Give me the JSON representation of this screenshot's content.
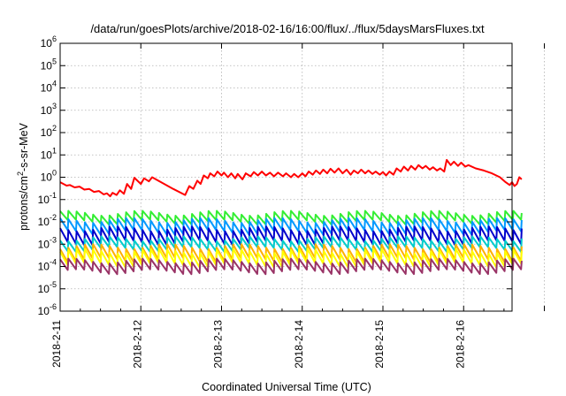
{
  "chart_data": {
    "type": "line",
    "title": "/data/run/goesPlots/archive/2018-02-16/16:00/flux/../flux/5daysMarsFluxes.txt",
    "xlabel": "Coordinated Universal Time (UTC)",
    "ylabel_parts": {
      "pre": "protons/cm",
      "sup": "2",
      "post": "-s-sr-MeV"
    },
    "y_scale": "log",
    "ylim": [
      1e-06,
      1000000.0
    ],
    "y_ticks": [
      {
        "base": "10",
        "exp": "-6"
      },
      {
        "base": "10",
        "exp": "-5"
      },
      {
        "base": "10",
        "exp": "-4"
      },
      {
        "base": "10",
        "exp": "-3"
      },
      {
        "base": "10",
        "exp": "-2"
      },
      {
        "base": "10",
        "exp": "-1"
      },
      {
        "base": "10",
        "exp": "0"
      },
      {
        "base": "10",
        "exp": "1"
      },
      {
        "base": "10",
        "exp": "2"
      },
      {
        "base": "10",
        "exp": "3"
      },
      {
        "base": "10",
        "exp": "4"
      },
      {
        "base": "10",
        "exp": "5"
      },
      {
        "base": "10",
        "exp": "6"
      }
    ],
    "x_ticks": [
      "2018-2-11",
      "2018-2-12",
      "2018-2-13",
      "2018-2-14",
      "2018-2-15",
      "2018-2-16"
    ],
    "x_range_days": [
      0,
      5.72
    ],
    "grid": true,
    "legend": "none",
    "series": [
      {
        "color": "#ff0000",
        "points": [
          [
            0.0,
            0.6
          ],
          [
            0.08,
            0.42
          ],
          [
            0.12,
            0.45
          ],
          [
            0.18,
            0.35
          ],
          [
            0.24,
            0.38
          ],
          [
            0.3,
            0.28
          ],
          [
            0.36,
            0.3
          ],
          [
            0.42,
            0.22
          ],
          [
            0.48,
            0.24
          ],
          [
            0.54,
            0.17
          ],
          [
            0.58,
            0.19
          ],
          [
            0.62,
            0.14
          ],
          [
            0.65,
            0.2
          ],
          [
            0.7,
            0.16
          ],
          [
            0.74,
            0.26
          ],
          [
            0.79,
            0.18
          ],
          [
            0.83,
            0.5
          ],
          [
            0.88,
            0.3
          ],
          [
            0.92,
            0.95
          ],
          [
            1.0,
            0.5
          ],
          [
            1.04,
            0.9
          ],
          [
            1.1,
            0.65
          ],
          [
            1.14,
            1.0
          ],
          [
            1.25,
            0.6
          ],
          [
            1.4,
            0.3
          ],
          [
            1.55,
            0.16
          ],
          [
            1.6,
            0.4
          ],
          [
            1.65,
            0.3
          ],
          [
            1.7,
            0.7
          ],
          [
            1.74,
            0.5
          ],
          [
            1.78,
            1.2
          ],
          [
            1.83,
            0.9
          ],
          [
            1.86,
            1.5
          ],
          [
            1.91,
            1.1
          ],
          [
            1.95,
            1.8
          ],
          [
            2.0,
            1.2
          ],
          [
            2.03,
            1.6
          ],
          [
            2.08,
            1.0
          ],
          [
            2.12,
            1.5
          ],
          [
            2.17,
            0.9
          ],
          [
            2.2,
            1.4
          ],
          [
            2.26,
            0.8
          ],
          [
            2.3,
            1.5
          ],
          [
            2.36,
            1.1
          ],
          [
            2.4,
            1.7
          ],
          [
            2.45,
            1.2
          ],
          [
            2.5,
            1.8
          ],
          [
            2.55,
            1.2
          ],
          [
            2.6,
            1.6
          ],
          [
            2.65,
            1.1
          ],
          [
            2.7,
            1.6
          ],
          [
            2.76,
            1.1
          ],
          [
            2.8,
            1.5
          ],
          [
            2.86,
            1.0
          ],
          [
            2.9,
            1.4
          ],
          [
            2.95,
            1.0
          ],
          [
            3.0,
            1.5
          ],
          [
            3.04,
            1.1
          ],
          [
            3.08,
            1.8
          ],
          [
            3.13,
            1.3
          ],
          [
            3.17,
            2.0
          ],
          [
            3.22,
            1.4
          ],
          [
            3.26,
            2.2
          ],
          [
            3.31,
            1.5
          ],
          [
            3.35,
            2.4
          ],
          [
            3.4,
            1.6
          ],
          [
            3.45,
            2.5
          ],
          [
            3.5,
            1.5
          ],
          [
            3.55,
            2.2
          ],
          [
            3.6,
            1.3
          ],
          [
            3.64,
            2.0
          ],
          [
            3.69,
            1.5
          ],
          [
            3.73,
            2.2
          ],
          [
            3.78,
            1.5
          ],
          [
            3.82,
            2.0
          ],
          [
            3.87,
            1.4
          ],
          [
            3.91,
            1.8
          ],
          [
            3.96,
            1.3
          ],
          [
            4.0,
            1.7
          ],
          [
            4.04,
            1.2
          ],
          [
            4.08,
            1.8
          ],
          [
            4.13,
            1.3
          ],
          [
            4.17,
            2.5
          ],
          [
            4.22,
            1.8
          ],
          [
            4.26,
            3.0
          ],
          [
            4.31,
            2.0
          ],
          [
            4.35,
            3.2
          ],
          [
            4.4,
            2.2
          ],
          [
            4.44,
            3.5
          ],
          [
            4.49,
            2.5
          ],
          [
            4.53,
            3.2
          ],
          [
            4.58,
            2.2
          ],
          [
            4.62,
            2.8
          ],
          [
            4.67,
            2.0
          ],
          [
            4.71,
            2.5
          ],
          [
            4.76,
            1.8
          ],
          [
            4.79,
            6.0
          ],
          [
            4.84,
            3.5
          ],
          [
            4.88,
            5.0
          ],
          [
            4.93,
            3.2
          ],
          [
            4.97,
            4.5
          ],
          [
            5.02,
            3.0
          ],
          [
            5.06,
            3.5
          ],
          [
            5.15,
            2.5
          ],
          [
            5.25,
            2.0
          ],
          [
            5.35,
            1.5
          ],
          [
            5.45,
            1.0
          ],
          [
            5.52,
            0.6
          ],
          [
            5.57,
            0.45
          ],
          [
            5.6,
            0.6
          ],
          [
            5.63,
            0.4
          ],
          [
            5.66,
            0.5
          ],
          [
            5.69,
            1.0
          ],
          [
            5.72,
            0.8
          ]
        ]
      },
      {
        "color": "#33ee33",
        "sawtooth": {
          "teeth": 56,
          "high": 0.025,
          "low": 0.01
        }
      },
      {
        "color": "#0099ff",
        "sawtooth": {
          "teeth": 56,
          "high": 0.012,
          "low": 0.0035
        }
      },
      {
        "color": "#0000cc",
        "sawtooth": {
          "teeth": 56,
          "high": 0.005,
          "low": 0.0012
        }
      },
      {
        "color": "#00cccc",
        "sawtooth": {
          "teeth": 56,
          "high": 0.0018,
          "low": 0.0006
        }
      },
      {
        "color": "#ffb000",
        "sawtooth": {
          "teeth": 56,
          "high": 0.0008,
          "low": 0.0002
        }
      },
      {
        "color": "#ffff00",
        "sawtooth": {
          "teeth": 56,
          "high": 0.0005,
          "low": 0.00012
        }
      },
      {
        "color": "#993366",
        "sawtooth": {
          "teeth": 56,
          "high": 0.00018,
          "low": 6e-05
        }
      }
    ]
  }
}
